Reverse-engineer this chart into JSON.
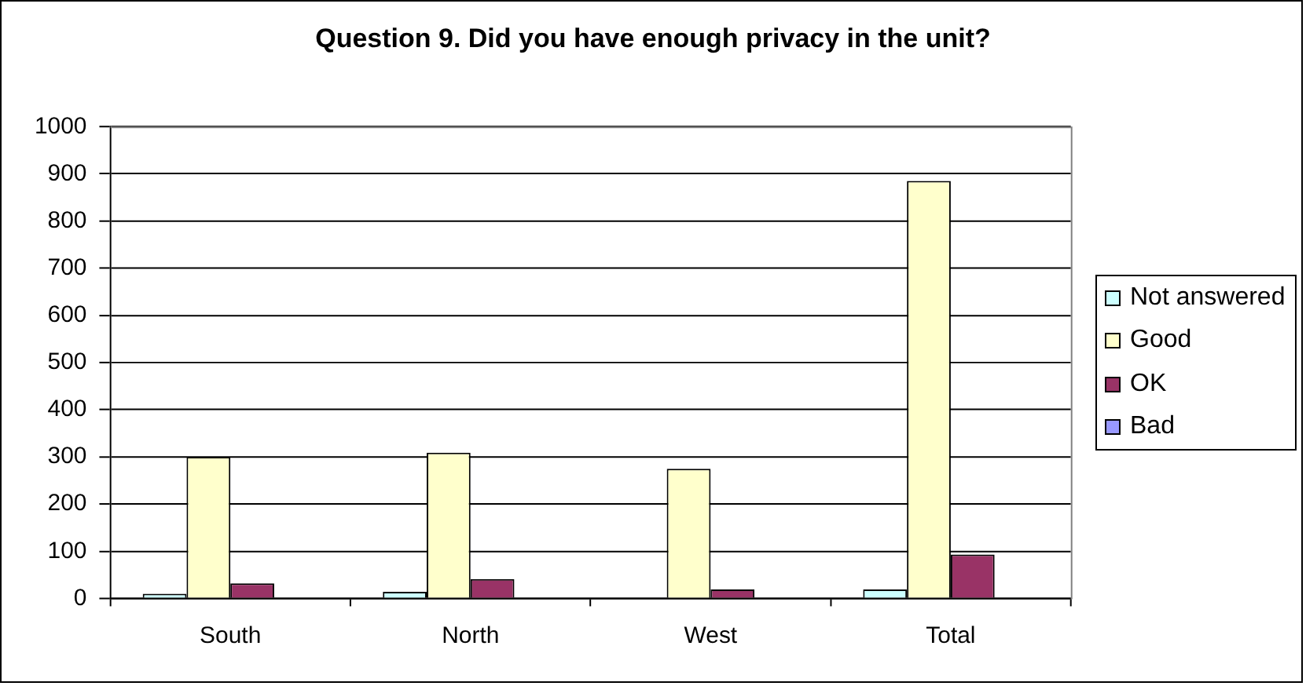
{
  "chart_data": {
    "type": "bar",
    "title": "Question 9. Did you have enough privacy in the unit?",
    "categories": [
      "South",
      "North",
      "West",
      "Total"
    ],
    "series": [
      {
        "name": "Not answered",
        "color": "#ccffff",
        "values": [
          10,
          14,
          0,
          19
        ]
      },
      {
        "name": "Good",
        "color": "#ffffcc",
        "values": [
          300,
          309,
          275,
          885
        ]
      },
      {
        "name": "OK",
        "color": "#993366",
        "values": [
          32,
          41,
          19,
          93
        ]
      },
      {
        "name": "Bad",
        "color": "#9999ff",
        "values": [
          0,
          0,
          0,
          0
        ]
      }
    ],
    "ylim": [
      0,
      1000
    ],
    "yticks": [
      0,
      100,
      200,
      300,
      400,
      500,
      600,
      700,
      800,
      900,
      1000
    ],
    "grid": "y",
    "legend": "right"
  }
}
